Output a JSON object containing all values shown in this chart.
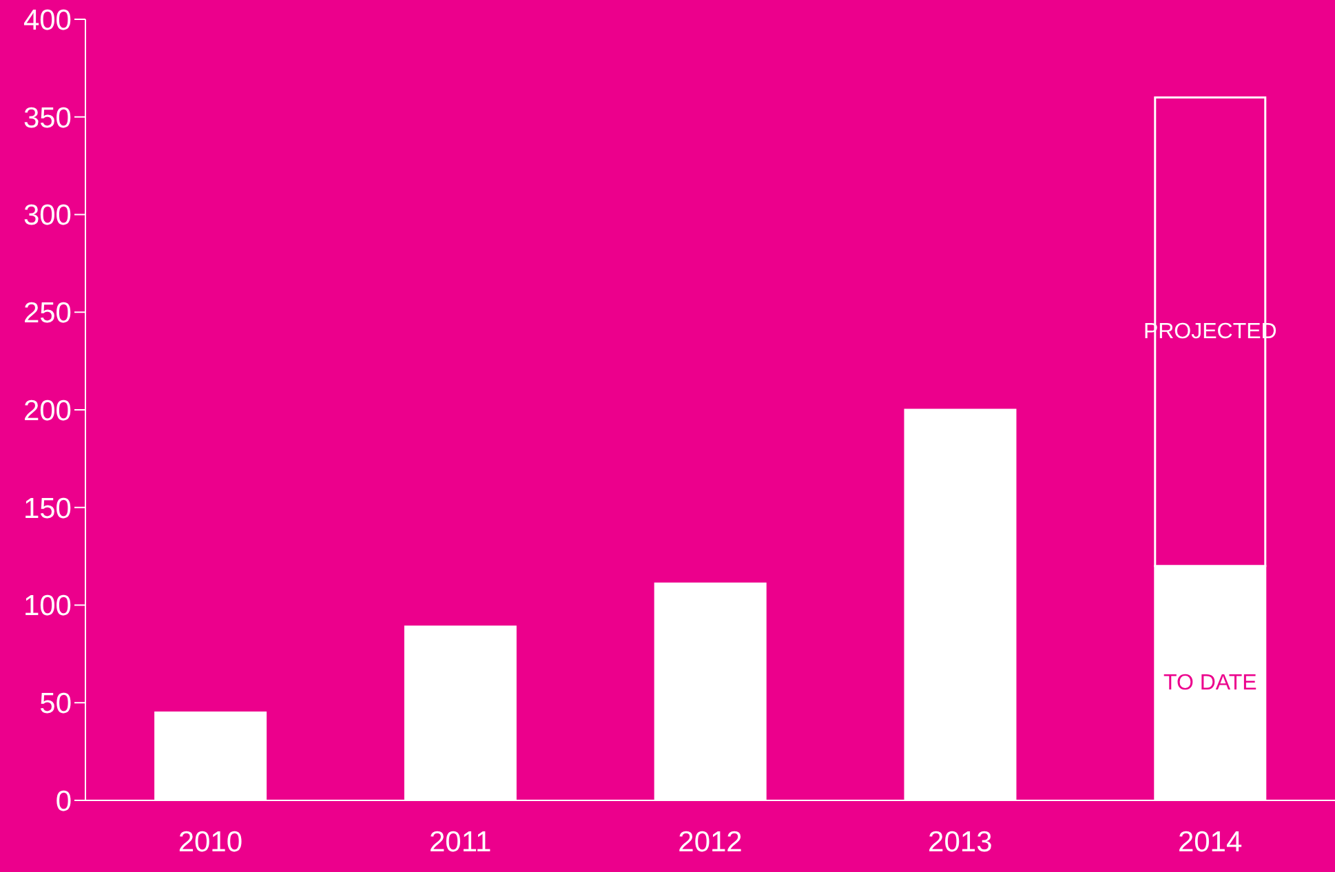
{
  "chart_data": {
    "type": "bar",
    "stacked": true,
    "categories": [
      "2010",
      "2011",
      "2012",
      "2013",
      "2014"
    ],
    "series": [
      {
        "name": "TO DATE",
        "color": "#ffffff",
        "values": [
          45,
          89,
          111,
          200,
          120
        ]
      },
      {
        "name": "PROJECTED",
        "color": "#ec008c",
        "values": [
          null,
          null,
          null,
          null,
          240
        ]
      }
    ],
    "ylim": [
      0,
      400
    ],
    "yticks": [
      0,
      50,
      100,
      150,
      200,
      250,
      300,
      350,
      400
    ],
    "grid": false,
    "legend": false
  }
}
